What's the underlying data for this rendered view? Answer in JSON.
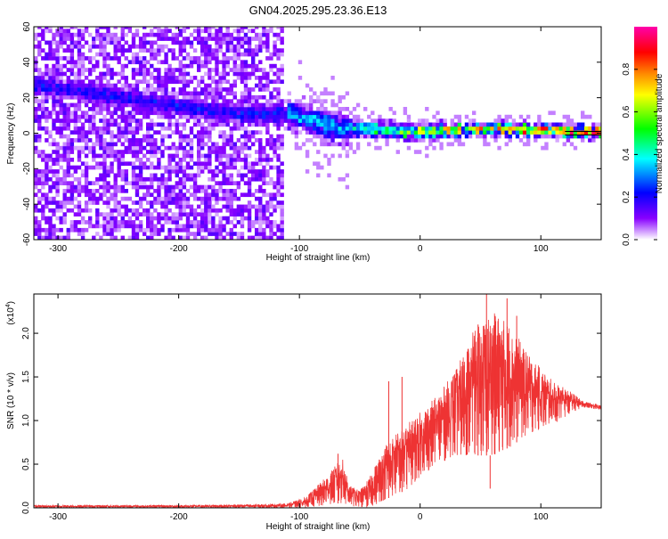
{
  "title": "GN04.2025.295.23.36.E13",
  "chart_data": [
    {
      "type": "heatmap",
      "xlabel": "Height of straight line (km)",
      "ylabel": "Frequency (Hz)",
      "xlim": [
        -320,
        150
      ],
      "ylim": [
        -60,
        60
      ],
      "xticks": [
        -300,
        -200,
        -100,
        0,
        100
      ],
      "xtick_labels": [
        "-300",
        "-200",
        "-100",
        "0",
        "100"
      ],
      "yticks": [
        -60,
        -40,
        -20,
        0,
        20,
        40,
        60
      ],
      "ytick_labels": [
        "-60",
        "-40",
        "-20",
        "0",
        "20",
        "40",
        "60"
      ],
      "noise_region_x": [
        -320,
        -113
      ],
      "signal_track": [
        {
          "x": -200,
          "f": 14
        },
        {
          "x": -150,
          "f": 9
        },
        {
          "x": -110,
          "f": 10
        },
        {
          "x": -90,
          "f": 6
        },
        {
          "x": -70,
          "f": 2
        },
        {
          "x": -40,
          "f": 1
        },
        {
          "x": 0,
          "f": 0
        },
        {
          "x": 40,
          "f": 1
        },
        {
          "x": 80,
          "f": 1
        },
        {
          "x": 120,
          "f": 0
        },
        {
          "x": 150,
          "f": 0
        }
      ],
      "colorbar": {
        "label": "Normalized spectral amplitude",
        "range": [
          0,
          1
        ],
        "ticks": [
          0.0,
          0.2,
          0.4,
          0.6,
          0.8
        ],
        "tick_labels": [
          "0.0",
          "0.2",
          "0.4",
          "0.6",
          "0.8"
        ],
        "colors": [
          "#ffffff",
          "#8800ff",
          "#0000ff",
          "#00ffff",
          "#00ff00",
          "#ffff00",
          "#ff8800",
          "#ff0000",
          "#ff00aa"
        ]
      },
      "reference_line_f": 0,
      "reference_line_x": [
        120,
        150
      ]
    },
    {
      "type": "line",
      "xlabel": "Height of straight line (km)",
      "ylabel": "SNR (10 * v/v)",
      "scale_label": "(x10",
      "scale_exp": "4",
      "scale_close": ")",
      "xlim": [
        -320,
        150
      ],
      "ylim": [
        0,
        2.45
      ],
      "xticks": [
        -300,
        -200,
        -100,
        0,
        100
      ],
      "xtick_labels": [
        "-300",
        "-200",
        "-100",
        "0",
        "100"
      ],
      "yticks": [
        0.0,
        0.5,
        1.0,
        1.5,
        2.0
      ],
      "ytick_labels": [
        "0.0",
        "0.5",
        "1.0",
        "1.5",
        "2.0"
      ],
      "series": [
        {
          "name": "SNR",
          "color": "#ee3333",
          "envelope": [
            {
              "x": -320,
              "lo": 0.0,
              "hi": 0.03
            },
            {
              "x": -200,
              "lo": 0.0,
              "hi": 0.03
            },
            {
              "x": -130,
              "lo": 0.0,
              "hi": 0.04
            },
            {
              "x": -110,
              "lo": 0.0,
              "hi": 0.05
            },
            {
              "x": -95,
              "lo": 0.0,
              "hi": 0.12
            },
            {
              "x": -82,
              "lo": 0.02,
              "hi": 0.3
            },
            {
              "x": -72,
              "lo": 0.05,
              "hi": 0.45
            },
            {
              "x": -65,
              "lo": 0.05,
              "hi": 0.6
            },
            {
              "x": -58,
              "lo": 0.02,
              "hi": 0.25
            },
            {
              "x": -50,
              "lo": 0.0,
              "hi": 0.2
            },
            {
              "x": -42,
              "lo": 0.0,
              "hi": 0.35
            },
            {
              "x": -35,
              "lo": 0.05,
              "hi": 0.55
            },
            {
              "x": -28,
              "lo": 0.1,
              "hi": 0.75
            },
            {
              "x": -20,
              "lo": 0.15,
              "hi": 0.85
            },
            {
              "x": -12,
              "lo": 0.2,
              "hi": 0.95
            },
            {
              "x": 0,
              "lo": 0.35,
              "hi": 1.1
            },
            {
              "x": 15,
              "lo": 0.5,
              "hi": 1.3
            },
            {
              "x": 30,
              "lo": 0.6,
              "hi": 1.6
            },
            {
              "x": 45,
              "lo": 0.6,
              "hi": 2.05
            },
            {
              "x": 60,
              "lo": 0.6,
              "hi": 2.25
            },
            {
              "x": 75,
              "lo": 0.7,
              "hi": 2.1
            },
            {
              "x": 90,
              "lo": 0.85,
              "hi": 1.75
            },
            {
              "x": 110,
              "lo": 0.95,
              "hi": 1.45
            },
            {
              "x": 125,
              "lo": 1.08,
              "hi": 1.33
            },
            {
              "x": 135,
              "lo": 1.15,
              "hi": 1.22
            },
            {
              "x": 150,
              "lo": 1.12,
              "hi": 1.18
            }
          ],
          "spikes": [
            {
              "x": 55,
              "y": 2.45
            },
            {
              "x": 72,
              "y": 2.4
            },
            {
              "x": 62,
              "y": 2.2
            },
            {
              "x": 48,
              "y": 2.1
            },
            {
              "x": 80,
              "y": 2.2
            },
            {
              "x": -26,
              "y": 1.45
            },
            {
              "x": -15,
              "y": 1.5
            },
            {
              "x": -68,
              "y": 0.62
            },
            {
              "x": 58,
              "y": 0.22
            }
          ]
        }
      ]
    }
  ]
}
